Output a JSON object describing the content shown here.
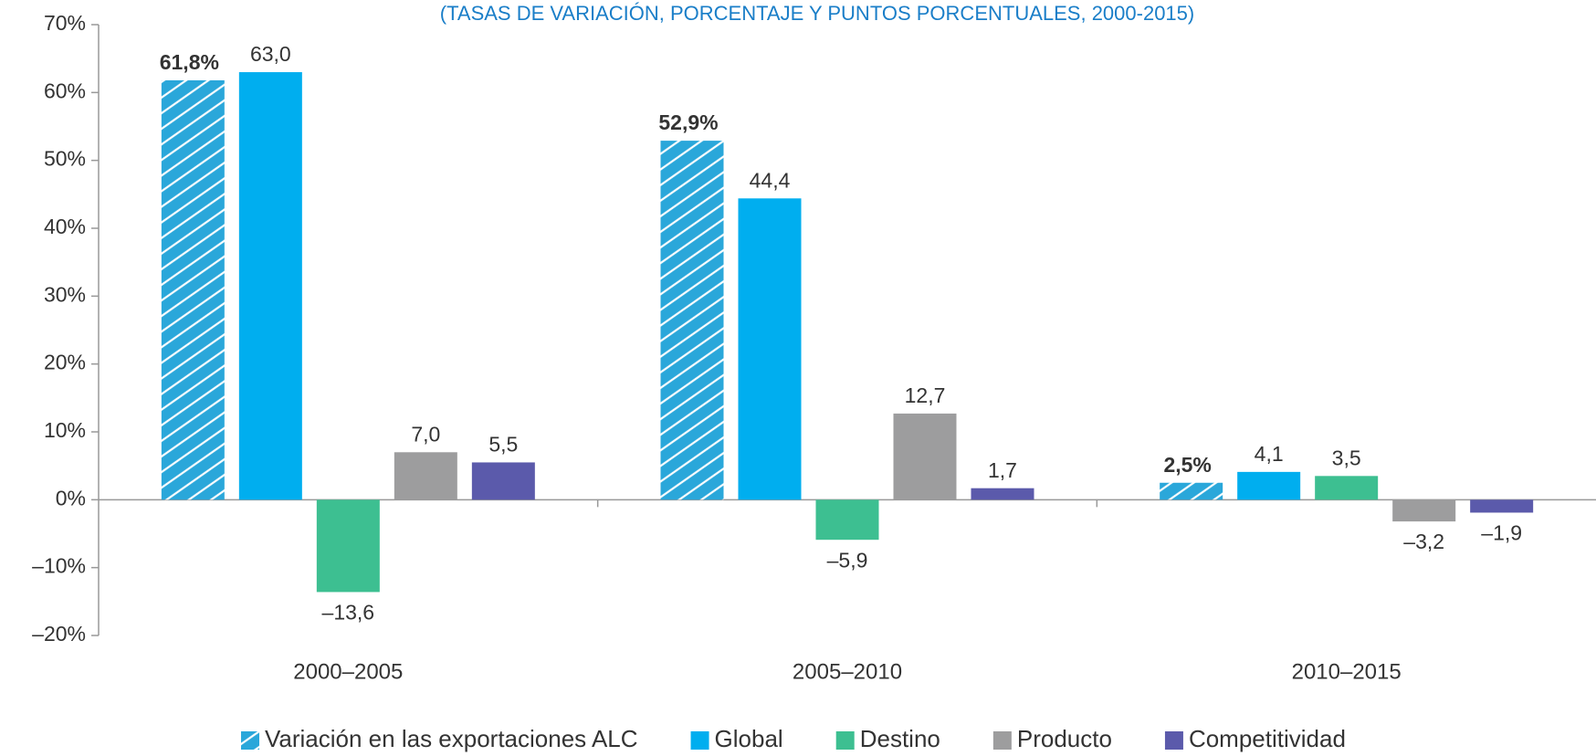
{
  "chart_data": {
    "type": "bar",
    "subtitle": "(TASAS DE VARIACIÓN, PORCENTAJE Y PUNTOS PORCENTUALES, 2000-2015)",
    "categories": [
      "2000–2005",
      "2005–2010",
      "2010–2015"
    ],
    "series": [
      {
        "name": "Variación en las exportaciones ALC",
        "color": "#2aa7da",
        "hatch": true,
        "values": [
          61.8,
          52.9,
          2.5
        ],
        "value_labels": [
          "61,8%",
          "52,9%",
          "2,5%"
        ]
      },
      {
        "name": "Global",
        "color": "#00aeef",
        "values": [
          63.0,
          44.4,
          4.1
        ],
        "value_labels": [
          "63,0",
          "44,4",
          "4,1"
        ]
      },
      {
        "name": "Destino",
        "color": "#3dbf91",
        "values": [
          -13.6,
          -5.9,
          3.5
        ],
        "value_labels": [
          "–13,6",
          "–5,9",
          "3,5"
        ]
      },
      {
        "name": "Producto",
        "color": "#9d9d9e",
        "values": [
          7.0,
          12.7,
          -3.2
        ],
        "value_labels": [
          "7,0",
          "12,7",
          "–3,2"
        ]
      },
      {
        "name": "Competitividad",
        "color": "#5b5aab",
        "values": [
          5.5,
          1.7,
          -1.9
        ],
        "value_labels": [
          "5,5",
          "1,7",
          "–1,9"
        ]
      }
    ],
    "ylim": [
      -20,
      70
    ],
    "yticks": [
      {
        "value": -20,
        "label": "–20%"
      },
      {
        "value": -10,
        "label": "–10%"
      },
      {
        "value": 0,
        "label": "0%"
      },
      {
        "value": 10,
        "label": "10%"
      },
      {
        "value": 20,
        "label": "20%"
      },
      {
        "value": 30,
        "label": "30%"
      },
      {
        "value": 40,
        "label": "40%"
      },
      {
        "value": 50,
        "label": "50%"
      },
      {
        "value": 60,
        "label": "60%"
      },
      {
        "value": 70,
        "label": "70%"
      }
    ],
    "legend": "bottom"
  }
}
